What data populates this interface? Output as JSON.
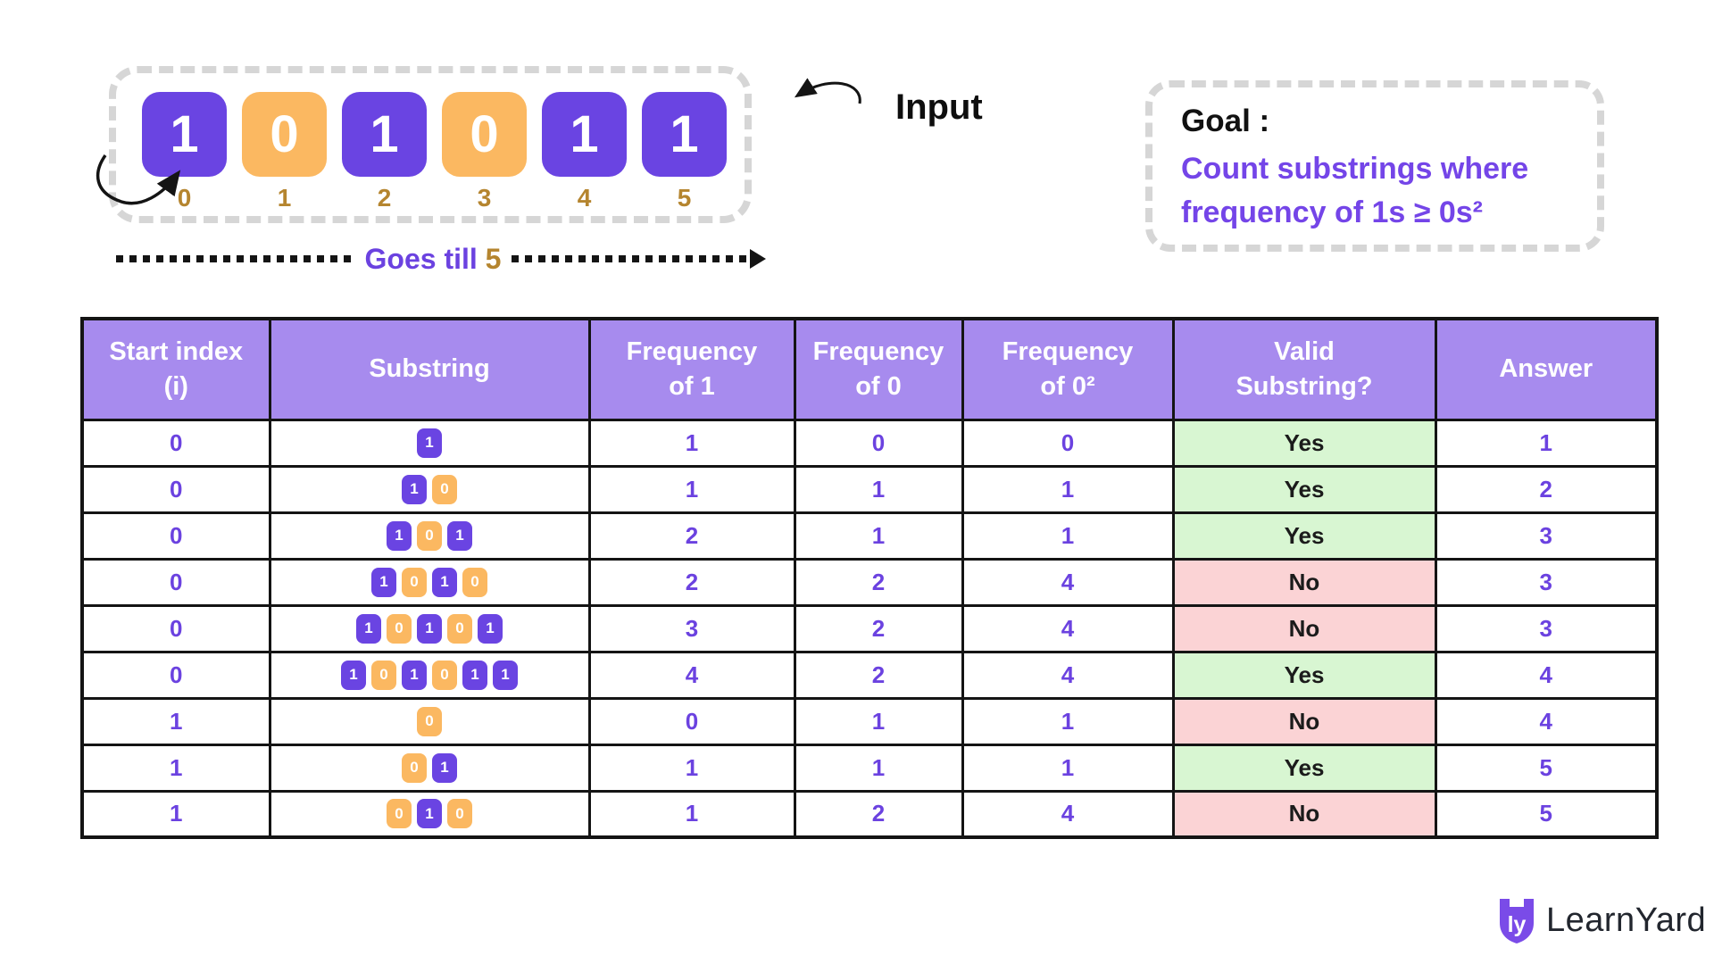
{
  "colors": {
    "purple_box": "#6A44E2",
    "orange_box": "#FBB861",
    "header_bg": "#A78BEE",
    "text_purple": "#6B42E0",
    "gold": "#B5852F",
    "valid_yes_bg": "#D8F6D2",
    "valid_no_bg": "#FBD3D5",
    "dash_gray": "#D6D6D6"
  },
  "input_section": {
    "label": "Input",
    "cells": [
      {
        "value": "1",
        "index": "0"
      },
      {
        "value": "0",
        "index": "1"
      },
      {
        "value": "1",
        "index": "2"
      },
      {
        "value": "0",
        "index": "3"
      },
      {
        "value": "1",
        "index": "4"
      },
      {
        "value": "1",
        "index": "5"
      }
    ],
    "goes_till_prefix": "Goes till ",
    "goes_till_value": "5"
  },
  "goal": {
    "title": "Goal :",
    "text": "Count substrings where\nfrequency of 1s ≥ 0s²"
  },
  "table": {
    "headers": [
      "Start index\n(i)",
      "Substring",
      "Frequency\nof 1",
      "Frequency\nof 0",
      "Frequency\nof 0²",
      "Valid\nSubstring?",
      "Answer"
    ],
    "rows": [
      {
        "start_index": "0",
        "substring": [
          "1"
        ],
        "freq_1": "1",
        "freq_0": "0",
        "freq_0_sq": "0",
        "valid": "Yes",
        "answer": "1"
      },
      {
        "start_index": "0",
        "substring": [
          "1",
          "0"
        ],
        "freq_1": "1",
        "freq_0": "1",
        "freq_0_sq": "1",
        "valid": "Yes",
        "answer": "2"
      },
      {
        "start_index": "0",
        "substring": [
          "1",
          "0",
          "1"
        ],
        "freq_1": "2",
        "freq_0": "1",
        "freq_0_sq": "1",
        "valid": "Yes",
        "answer": "3"
      },
      {
        "start_index": "0",
        "substring": [
          "1",
          "0",
          "1",
          "0"
        ],
        "freq_1": "2",
        "freq_0": "2",
        "freq_0_sq": "4",
        "valid": "No",
        "answer": "3"
      },
      {
        "start_index": "0",
        "substring": [
          "1",
          "0",
          "1",
          "0",
          "1"
        ],
        "freq_1": "3",
        "freq_0": "2",
        "freq_0_sq": "4",
        "valid": "No",
        "answer": "3"
      },
      {
        "start_index": "0",
        "substring": [
          "1",
          "0",
          "1",
          "0",
          "1",
          "1"
        ],
        "freq_1": "4",
        "freq_0": "2",
        "freq_0_sq": "4",
        "valid": "Yes",
        "answer": "4"
      },
      {
        "start_index": "1",
        "substring": [
          "0"
        ],
        "freq_1": "0",
        "freq_0": "1",
        "freq_0_sq": "1",
        "valid": "No",
        "answer": "4"
      },
      {
        "start_index": "1",
        "substring": [
          "0",
          "1"
        ],
        "freq_1": "1",
        "freq_0": "1",
        "freq_0_sq": "1",
        "valid": "Yes",
        "answer": "5"
      },
      {
        "start_index": "1",
        "substring": [
          "0",
          "1",
          "0"
        ],
        "freq_1": "1",
        "freq_0": "2",
        "freq_0_sq": "4",
        "valid": "No",
        "answer": "5"
      }
    ]
  },
  "brand": {
    "name": "LearnYard"
  }
}
